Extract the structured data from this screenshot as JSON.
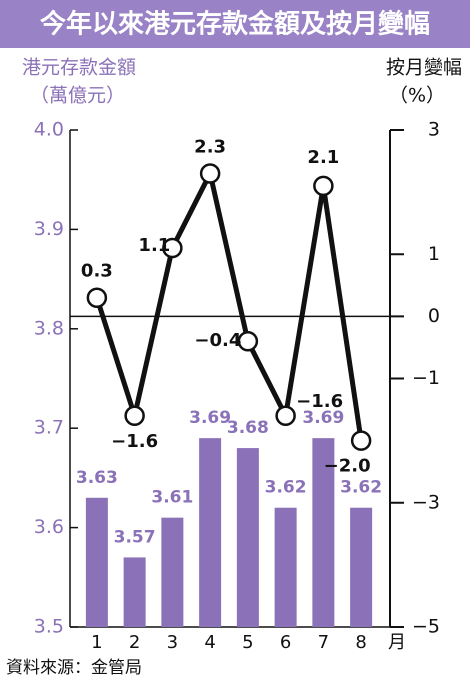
{
  "chart_data": {
    "type": "combo",
    "title": "今年以來港元存款金額及按月變幅",
    "y_label": [
      "港元存款金額",
      "（萬億元）"
    ],
    "y2_label": [
      "按月變幅",
      "（%）"
    ],
    "x_unit": "月",
    "source": "資料來源：金管局",
    "categories": [
      "1",
      "2",
      "3",
      "4",
      "5",
      "6",
      "7",
      "8"
    ],
    "ylim": [
      3.5,
      4.0
    ],
    "yticks": [
      3.5,
      3.6,
      3.7,
      3.8,
      3.9,
      {
        "value": 4.0,
        "label": "4.0"
      }
    ],
    "y2lim": [
      -5,
      3
    ],
    "y2ticks": [
      {
        "value": -5,
        "label": "−5"
      },
      {
        "value": -3,
        "label": "−3"
      },
      {
        "value": -1,
        "label": "−1"
      },
      0,
      1,
      3
    ],
    "series": [
      {
        "type": "bar",
        "color": "#8b72b8",
        "values": [
          3.63,
          3.57,
          3.61,
          3.69,
          3.68,
          3.62,
          3.69,
          3.62
        ]
      },
      {
        "type": "line",
        "axis": "y2",
        "color": "#111111",
        "values": [
          0.3,
          -1.6,
          1.1,
          2.3,
          -0.4,
          -1.6,
          2.1,
          -2.0
        ],
        "value_labels": [
          "0.3",
          "−1.6",
          "1.1",
          "2.3",
          "−0.4",
          "−1.6",
          "2.1",
          "−2.0"
        ]
      }
    ]
  }
}
